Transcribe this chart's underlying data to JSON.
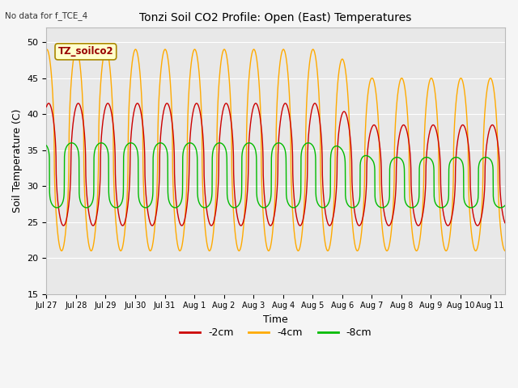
{
  "title": "Tonzi Soil CO2 Profile: Open (East) Temperatures",
  "xlabel": "Time",
  "ylabel": "Soil Temperature (C)",
  "no_data_text": "No data for f_TCE_4",
  "watermark": "TZ_soilco2",
  "ylim": [
    15,
    52
  ],
  "yticks": [
    15,
    20,
    25,
    30,
    35,
    40,
    45,
    50
  ],
  "colors": {
    "2cm": "#cc0000",
    "4cm": "#ffaa00",
    "8cm": "#00bb00"
  },
  "legend_labels": [
    "-2cm",
    "-4cm",
    "-8cm"
  ],
  "bg_color": "#e8e8e8",
  "grid_color": "#ffffff",
  "xtick_labels": [
    "Jul 27",
    "Jul 28",
    "Jul 29",
    "Jul 30",
    "Jul 31",
    "Aug 1",
    "Aug 2",
    "Aug 3",
    "Aug 4",
    "Aug 5",
    "Aug 6",
    "Aug 7",
    "Aug 8",
    "Aug 9",
    "Aug 10",
    "Aug 11"
  ]
}
